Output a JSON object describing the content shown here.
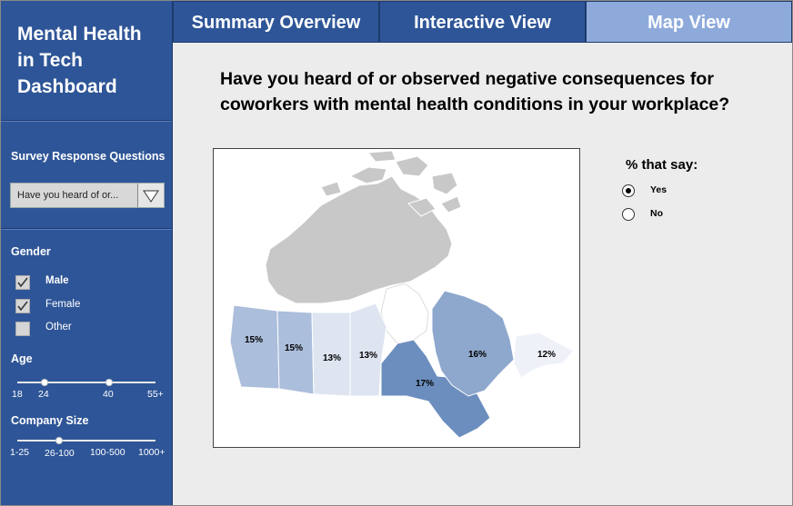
{
  "sidebar": {
    "app_title_lines": [
      "Mental Health",
      "in Tech",
      "Dashboard"
    ],
    "question_filter": {
      "label": "Survey Response Questions",
      "selected": "Have you heard of or..."
    },
    "gender": {
      "label": "Gender",
      "options": [
        {
          "label": "Male",
          "checked": true
        },
        {
          "label": "Female",
          "checked": true
        },
        {
          "label": "Other",
          "checked": false
        }
      ]
    },
    "age": {
      "label": "Age",
      "ticks": [
        "18",
        "24",
        "40",
        "55+"
      ],
      "selected_range": [
        "24",
        "40"
      ]
    },
    "company_size": {
      "label": "Company Size",
      "ticks": [
        "1-25",
        "26-100",
        "100-500",
        "1000+"
      ],
      "selected": "26-100"
    }
  },
  "tabs": [
    {
      "label": "Summary Overview",
      "active": false
    },
    {
      "label": "Interactive View",
      "active": false
    },
    {
      "label": "Map View",
      "active": true
    }
  ],
  "main": {
    "question_lines": [
      "Have you heard of or observed negative consequences for",
      "coworkers with mental health conditions in your workplace?"
    ],
    "legend": {
      "title": "% that say:",
      "options": [
        {
          "label": "Yes",
          "selected": true
        },
        {
          "label": "No",
          "selected": false
        }
      ]
    }
  },
  "map_data": {
    "type": "choropleth",
    "regions": [
      {
        "region": "British Columbia",
        "label": "15%",
        "value": 15
      },
      {
        "region": "Alberta",
        "label": "15%",
        "value": 15
      },
      {
        "region": "Saskatchewan",
        "label": "13%",
        "value": 13
      },
      {
        "region": "Manitoba",
        "label": "13%",
        "value": 13
      },
      {
        "region": "Ontario",
        "label": "17%",
        "value": 17
      },
      {
        "region": "Quebec",
        "label": "16%",
        "value": 16
      },
      {
        "region": "Atlantic Canada",
        "label": "12%",
        "value": 12
      }
    ],
    "colors": {
      "no_data": "#c8c8c8",
      "low": "#eef1f8",
      "high": "#6c8ebf"
    }
  }
}
